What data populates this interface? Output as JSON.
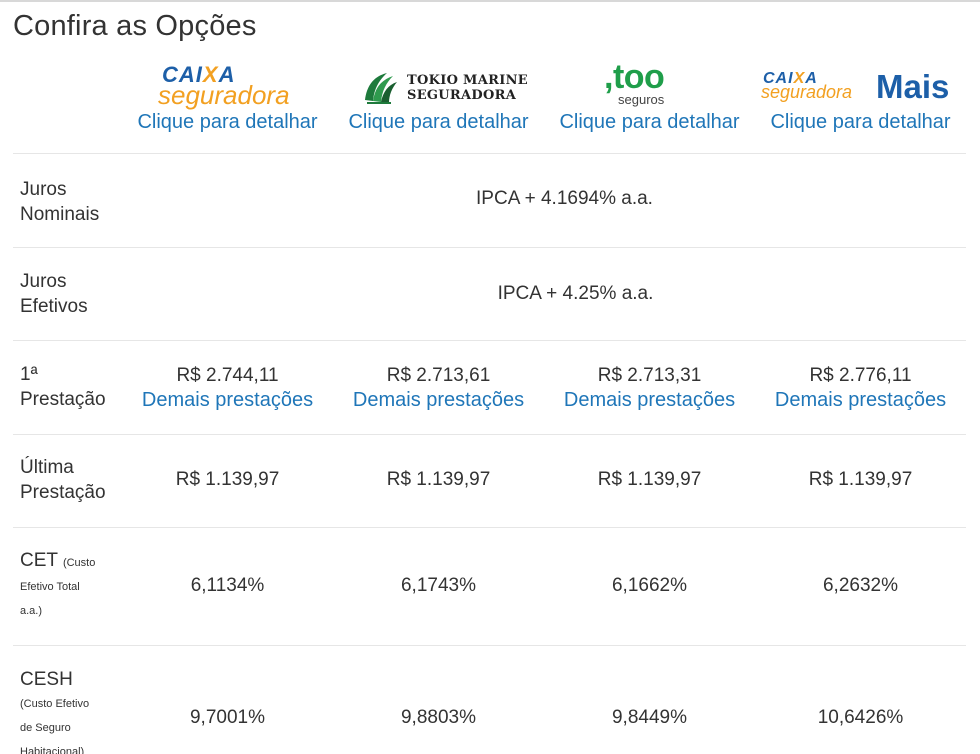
{
  "page_title": "Confira as Opções",
  "insurers": [
    {
      "logo": {
        "caixa_prefix": "CAI",
        "caixa_x": "X",
        "caixa_suffix": "A",
        "seg": "seguradora"
      },
      "detail_link": "Clique para detalhar"
    },
    {
      "logo": {
        "line1": "TOKIO MARINE",
        "line2": "SEGURADORA"
      },
      "detail_link": "Clique para detalhar"
    },
    {
      "logo": {
        "main": ",too",
        "sub": "seguros"
      },
      "detail_link": "Clique para detalhar"
    },
    {
      "logo": {
        "caixa_prefix": "CAI",
        "caixa_x": "X",
        "caixa_suffix": "A",
        "seg": "seguradora",
        "mais": "Mais"
      },
      "detail_link": "Clique para detalhar"
    }
  ],
  "rows": {
    "juros_nominais": {
      "label1": "Juros",
      "label2": "Nominais",
      "value": "IPCA + 4.1694% a.a."
    },
    "juros_efetivos": {
      "label1": "Juros",
      "label2": "Efetivos",
      "value": "IPCA + 4.25% a.a."
    },
    "primeira_prestacao": {
      "label1": "1ª",
      "label2": "Prestação",
      "values": [
        "R$ 2.744,11",
        "R$ 2.713,61",
        "R$ 2.713,31",
        "R$ 2.776,11"
      ],
      "link": "Demais prestações"
    },
    "ultima_prestacao": {
      "label1": "Última",
      "label2": "Prestação",
      "values": [
        "R$ 1.139,97",
        "R$ 1.139,97",
        "R$ 1.139,97",
        "R$ 1.139,97"
      ]
    },
    "cet": {
      "label_main": "CET",
      "label_small1": "(Custo",
      "label_small2": "Efetivo Total",
      "label_small3": "a.a.)",
      "values": [
        "6,1134%",
        "6,1743%",
        "6,1662%",
        "6,2632%"
      ]
    },
    "cesh": {
      "label_main": "CESH",
      "label_small1": "(Custo Efetivo",
      "label_small2": "de Seguro",
      "label_small3": "Habitacional)",
      "values": [
        "9,7001%",
        "9,8803%",
        "9,8449%",
        "10,6426%"
      ]
    }
  },
  "colors": {
    "link": "#1f76b8",
    "caixa_blue": "#1d5fa8",
    "caixa_orange": "#f2a021",
    "too_green": "#1f9e4a",
    "divider": "#e6e6e6"
  }
}
